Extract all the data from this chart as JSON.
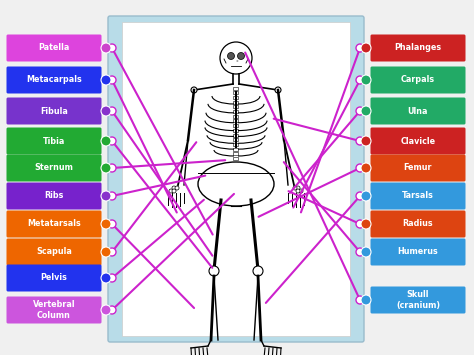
{
  "bg_color": "#c8e8f5",
  "inner_bg": "#ffffff",
  "outer_bg": "#f0f0f0",
  "left_labels": [
    {
      "text": "Patella",
      "color": "#dd44dd",
      "dot_color": "#cc44cc"
    },
    {
      "text": "Metacarpals",
      "color": "#2233ee",
      "dot_color": "#2233ee"
    },
    {
      "text": "Fibula",
      "color": "#7733cc",
      "dot_color": "#8833cc"
    },
    {
      "text": "Tibia",
      "color": "#22aa33",
      "dot_color": "#22aa33"
    },
    {
      "text": "Sternum",
      "color": "#22aa33",
      "dot_color": "#22aa33"
    },
    {
      "text": "Ribs",
      "color": "#7722cc",
      "dot_color": "#8833cc"
    },
    {
      "text": "Metatarsals",
      "color": "#ee6600",
      "dot_color": "#ee6600"
    },
    {
      "text": "Scapula",
      "color": "#ee6600",
      "dot_color": "#ee6600"
    },
    {
      "text": "Pelvis",
      "color": "#2233ee",
      "dot_color": "#2233ee"
    },
    {
      "text": "Vertebral\nColumn",
      "color": "#cc55dd",
      "dot_color": "#cc55dd"
    }
  ],
  "right_labels": [
    {
      "text": "Phalanges",
      "color": "#cc2222",
      "dot_color": "#cc2222"
    },
    {
      "text": "Carpals",
      "color": "#22aa66",
      "dot_color": "#22aa66"
    },
    {
      "text": "Ulna",
      "color": "#22aa66",
      "dot_color": "#22aa66"
    },
    {
      "text": "Clavicle",
      "color": "#cc2222",
      "dot_color": "#cc2222"
    },
    {
      "text": "Femur",
      "color": "#dd4411",
      "dot_color": "#dd4411"
    },
    {
      "text": "Tarsals",
      "color": "#3399dd",
      "dot_color": "#3399dd"
    },
    {
      "text": "Radius",
      "color": "#dd4411",
      "dot_color": "#dd4411"
    },
    {
      "text": "Humerus",
      "color": "#3399dd",
      "dot_color": "#3399dd"
    },
    {
      "text": "Skull\n(cranium)",
      "color": "#3399dd",
      "dot_color": "#3399dd"
    }
  ],
  "line_color": "#cc22cc",
  "line_width": 1.5
}
